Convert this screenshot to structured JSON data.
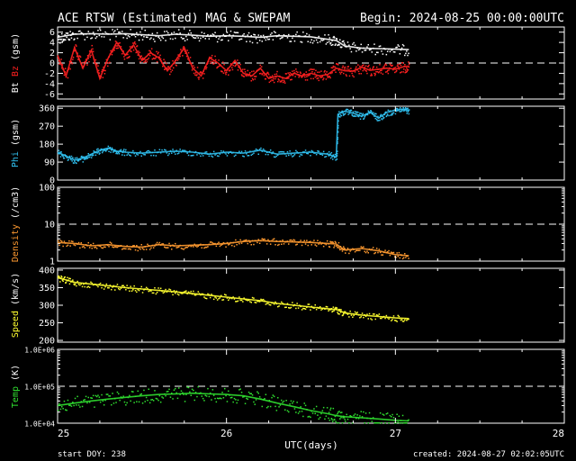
{
  "header": {
    "title": "ACE RTSW (Estimated) MAG & SWEPAM",
    "begin": "Begin: 2024-08-25 00:00:00UTC"
  },
  "footer": {
    "start_doy": "start DOY: 238",
    "created": "created: 2024-08-27 02:02:05UTC"
  },
  "colors": {
    "bt": "#ffffff",
    "bz": "#ff2020",
    "phi": "#30c0f0",
    "density": "#ff9a30",
    "speed": "#ffff30",
    "temp": "#30e030"
  },
  "chart_data": {
    "type": "scatter",
    "xlabel": "UTC(days)",
    "xlim": [
      25,
      28
    ],
    "xticks": [
      "25",
      "26",
      "27",
      "28"
    ],
    "panels": [
      {
        "id": "mag",
        "ylabel_parts": [
          {
            "text": "Bt",
            "color": "#ffffff"
          },
          {
            "text": " Bz",
            "color": "#ff2020"
          },
          {
            "text": " (gsm)",
            "color": "#ffffff"
          }
        ],
        "ylim": [
          -7,
          7
        ],
        "scale": "linear",
        "yticks": [
          "6",
          "4",
          "2",
          "0",
          "-2",
          "-4",
          "-6"
        ],
        "ytick_values": [
          6,
          4,
          2,
          0,
          -2,
          -4,
          -6
        ],
        "dashed": [
          0
        ],
        "series": [
          {
            "name": "Bt",
            "color": "#ffffff",
            "x": [
              25.0,
              25.05,
              25.1,
              25.2,
              25.3,
              25.4,
              25.5,
              25.6,
              25.7,
              25.8,
              25.9,
              26.0,
              26.1,
              26.2,
              26.3,
              26.4,
              26.5,
              26.6,
              26.65,
              26.7,
              26.8,
              26.9,
              27.0,
              27.08
            ],
            "y": [
              5.0,
              5.3,
              5.6,
              5.7,
              5.6,
              5.7,
              5.5,
              5.3,
              5.6,
              5.4,
              5.2,
              5.3,
              5.2,
              5.0,
              5.3,
              5.2,
              5.1,
              4.6,
              4.4,
              3.3,
              2.9,
              2.8,
              2.7,
              2.6
            ]
          },
          {
            "name": "Bz",
            "color": "#ff2020",
            "x": [
              25.0,
              25.05,
              25.1,
              25.15,
              25.2,
              25.25,
              25.3,
              25.35,
              25.4,
              25.45,
              25.5,
              25.55,
              25.6,
              25.65,
              25.7,
              25.75,
              25.8,
              25.85,
              25.9,
              25.95,
              26.0,
              26.05,
              26.1,
              26.15,
              26.2,
              26.25,
              26.3,
              26.35,
              26.4,
              26.45,
              26.5,
              26.55,
              26.6,
              26.65,
              26.7,
              26.75,
              26.8,
              26.85,
              26.9,
              26.95,
              27.0,
              27.05,
              27.08
            ],
            "y": [
              1.5,
              -2.5,
              3.0,
              -1.0,
              2.5,
              -3.0,
              1.0,
              4.0,
              1.5,
              3.5,
              0.5,
              2.0,
              1.0,
              -1.5,
              0.5,
              3.0,
              -1.0,
              -2.5,
              1.0,
              0.0,
              -1.5,
              0.5,
              -2.0,
              -2.5,
              -1.0,
              -3.0,
              -2.5,
              -3.0,
              -2.0,
              -2.5,
              -2.0,
              -2.5,
              -2.2,
              -1.0,
              -1.5,
              -1.6,
              -0.8,
              -1.4,
              -1.2,
              -1.0,
              -1.2,
              -0.7,
              -0.6
            ]
          }
        ]
      },
      {
        "id": "phi",
        "ylabel_parts": [
          {
            "text": "Phi",
            "color": "#30c0f0"
          },
          {
            "text": " (gsm)",
            "color": "#ffffff"
          }
        ],
        "ylim": [
          0,
          370
        ],
        "scale": "linear",
        "yticks": [
          "360",
          "270",
          "180",
          "90",
          "0"
        ],
        "ytick_values": [
          360,
          270,
          180,
          90,
          0
        ],
        "dashed": [],
        "series": [
          {
            "name": "Phi",
            "color": "#30c0f0",
            "x": [
              25.0,
              25.05,
              25.1,
              25.15,
              25.2,
              25.25,
              25.3,
              25.35,
              25.4,
              25.5,
              25.6,
              25.7,
              25.8,
              25.9,
              26.0,
              26.1,
              26.2,
              26.3,
              26.4,
              26.5,
              26.6,
              26.65,
              26.66,
              26.7,
              26.75,
              26.8,
              26.85,
              26.9,
              26.95,
              27.0,
              27.05,
              27.08
            ],
            "y": [
              140,
              120,
              100,
              110,
              130,
              150,
              160,
              145,
              140,
              135,
              140,
              145,
              140,
              130,
              140,
              135,
              150,
              130,
              135,
              140,
              130,
              115,
              330,
              345,
              335,
              320,
              340,
              310,
              340,
              350,
              355,
              350
            ]
          }
        ]
      },
      {
        "id": "density",
        "ylabel_parts": [
          {
            "text": "Density",
            "color": "#ff9a30"
          },
          {
            "text": " (/cm3)",
            "color": "#ffffff"
          }
        ],
        "ylim": [
          1,
          100
        ],
        "scale": "log",
        "yticks": [
          "100",
          "10",
          "1"
        ],
        "ytick_values": [
          100,
          10,
          1
        ],
        "dashed": [
          10
        ],
        "series": [
          {
            "name": "Density",
            "color": "#ff9a30",
            "x": [
              25.0,
              25.1,
              25.2,
              25.3,
              25.4,
              25.5,
              25.6,
              25.7,
              25.8,
              25.9,
              26.0,
              26.1,
              26.2,
              26.3,
              26.4,
              26.5,
              26.6,
              26.65,
              26.7,
              26.8,
              26.9,
              27.0,
              27.08
            ],
            "y": [
              3.2,
              3.0,
              2.6,
              2.8,
              2.5,
              2.4,
              2.8,
              2.6,
              2.7,
              2.8,
              3.0,
              3.4,
              3.6,
              3.4,
              3.3,
              3.2,
              3.0,
              2.9,
              2.0,
              2.2,
              1.9,
              1.5,
              1.4
            ]
          }
        ]
      },
      {
        "id": "speed",
        "ylabel_parts": [
          {
            "text": "Speed",
            "color": "#ffff30"
          },
          {
            "text": " (km/s)",
            "color": "#ffffff"
          }
        ],
        "ylim": [
          195,
          405
        ],
        "scale": "linear",
        "yticks": [
          "400",
          "350",
          "300",
          "250",
          "200"
        ],
        "ytick_values": [
          400,
          350,
          300,
          250,
          200
        ],
        "dashed": [],
        "series": [
          {
            "name": "Speed",
            "color": "#ffff30",
            "x": [
              25.0,
              25.05,
              25.1,
              25.2,
              25.3,
              25.4,
              25.5,
              25.6,
              25.7,
              25.8,
              25.9,
              26.0,
              26.1,
              26.2,
              26.3,
              26.4,
              26.5,
              26.6,
              26.65,
              26.7,
              26.8,
              26.9,
              27.0,
              27.08
            ],
            "y": [
              378,
              372,
              365,
              360,
              355,
              350,
              346,
              342,
              338,
              333,
              328,
              323,
              318,
              313,
              305,
              300,
              295,
              290,
              288,
              278,
              272,
              268,
              264,
              262
            ]
          }
        ]
      },
      {
        "id": "temp",
        "ylabel_parts": [
          {
            "text": "Temp",
            "color": "#30e030"
          },
          {
            "text": " (K)",
            "color": "#ffffff"
          }
        ],
        "ylim": [
          10000,
          1000000
        ],
        "scale": "log",
        "yticks": [
          "1.0E+06",
          "1.0E+05",
          "1.0E+04"
        ],
        "ytick_values": [
          1000000,
          100000,
          10000
        ],
        "dashed": [
          100000
        ],
        "series": [
          {
            "name": "Temp",
            "color": "#30e030",
            "x": [
              25.0,
              25.1,
              25.2,
              25.3,
              25.4,
              25.5,
              25.6,
              25.7,
              25.8,
              25.9,
              26.0,
              26.1,
              26.2,
              26.3,
              26.4,
              26.5,
              26.6,
              26.65,
              26.7,
              26.8,
              26.9,
              27.0,
              27.08
            ],
            "y": [
              30000,
              35000,
              40000,
              45000,
              50000,
              55000,
              60000,
              62000,
              65000,
              62000,
              60000,
              55000,
              45000,
              35000,
              28000,
              22000,
              18000,
              16000,
              15000,
              14000,
              13000,
              12000,
              11500
            ]
          }
        ]
      }
    ]
  }
}
